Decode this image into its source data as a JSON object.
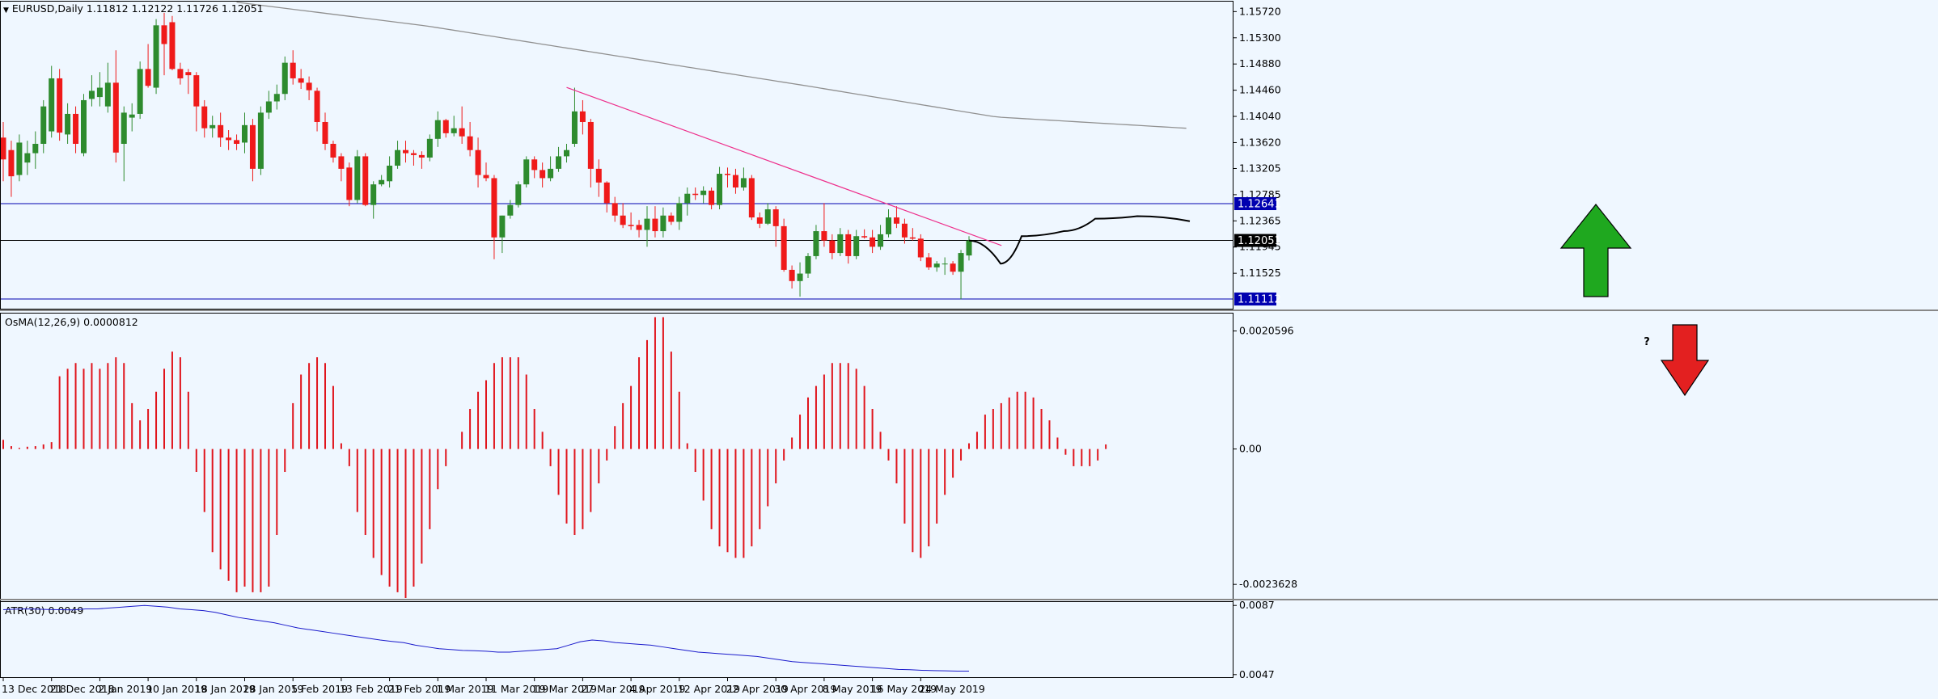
{
  "symbol_header": "EURUSD,Daily  1.11812 1.12122 1.11726 1.12051",
  "colors": {
    "background": "#eff7ff",
    "bull": "#2e8b2e",
    "bear": "#ef1a1a",
    "ma": "#909090",
    "trendline": "#ee2f8b",
    "level": "#0000b0",
    "current": "#000000",
    "atr": "#1a1acc",
    "osma": "#e0141c",
    "arrow_up": "#1fa81f",
    "arrow_down": "#e32020"
  },
  "chart_data": [
    {
      "type": "candlestick",
      "title": "EURUSD,Daily",
      "ohlc_current": {
        "open": 1.11812,
        "high": 1.12122,
        "low": 1.11726,
        "close": 1.12051
      },
      "ylim": [
        1.1097,
        1.1588
      ],
      "y_ticks": [
        "1.15720",
        "1.15300",
        "1.14880",
        "1.14460",
        "1.14040",
        "1.13620",
        "1.13205",
        "1.12785",
        "1.12365",
        "1.11945",
        "1.11525"
      ],
      "x_ticks": [
        "13 Dec 2018",
        "21 Dec 2018",
        "2 Jan 2019",
        "10 Jan 2019",
        "18 Jan 2019",
        "28 Jan 2019",
        "5 Feb 2019",
        "13 Feb 2019",
        "21 Feb 2019",
        "1 Mar 2019",
        "11 Mar 2019",
        "19 Mar 2019",
        "27 Mar 2019",
        "4 Apr 2019",
        "12 Apr 2019",
        "22 Apr 2019",
        "30 Apr 2019",
        "8 May 2019",
        "16 May 2019",
        "24 May 2019"
      ],
      "price_tags": [
        {
          "label": "1.12641",
          "value": 1.12641,
          "kind": "level"
        },
        {
          "label": "1.12051",
          "value": 1.12051,
          "kind": "current"
        },
        {
          "label": "1.11112",
          "value": 1.11112,
          "kind": "level"
        }
      ],
      "candles": [
        [
          1.137,
          1.1395,
          1.13,
          1.1335
        ],
        [
          1.135,
          1.1365,
          1.1275,
          1.1308
        ],
        [
          1.131,
          1.1375,
          1.13,
          1.1362
        ],
        [
          1.133,
          1.1365,
          1.131,
          1.1345
        ],
        [
          1.1345,
          1.138,
          1.132,
          1.136
        ],
        [
          1.136,
          1.143,
          1.1345,
          1.142
        ],
        [
          1.138,
          1.1485,
          1.137,
          1.1465
        ],
        [
          1.1465,
          1.148,
          1.1365,
          1.1378
        ],
        [
          1.1375,
          1.1425,
          1.136,
          1.1408
        ],
        [
          1.1408,
          1.142,
          1.1345,
          1.136
        ],
        [
          1.1345,
          1.144,
          1.134,
          1.143
        ],
        [
          1.1432,
          1.147,
          1.142,
          1.1445
        ],
        [
          1.1435,
          1.1475,
          1.142,
          1.145
        ],
        [
          1.142,
          1.149,
          1.141,
          1.1458
        ],
        [
          1.1458,
          1.151,
          1.133,
          1.1346
        ],
        [
          1.136,
          1.142,
          1.13,
          1.141
        ],
        [
          1.1402,
          1.1425,
          1.138,
          1.1407
        ],
        [
          1.1408,
          1.1492,
          1.14,
          1.148
        ],
        [
          1.148,
          1.152,
          1.145,
          1.1453
        ],
        [
          1.145,
          1.156,
          1.144,
          1.155
        ],
        [
          1.155,
          1.157,
          1.147,
          1.152
        ],
        [
          1.1555,
          1.1565,
          1.1478,
          1.148
        ],
        [
          1.148,
          1.149,
          1.1455,
          1.1465
        ],
        [
          1.1475,
          1.148,
          1.144,
          1.147
        ],
        [
          1.147,
          1.1475,
          1.138,
          1.142
        ],
        [
          1.142,
          1.143,
          1.137,
          1.1385
        ],
        [
          1.1385,
          1.1405,
          1.137,
          1.139
        ],
        [
          1.139,
          1.141,
          1.1355,
          1.137
        ],
        [
          1.137,
          1.1382,
          1.135,
          1.1366
        ],
        [
          1.1366,
          1.1375,
          1.135,
          1.136
        ],
        [
          1.1362,
          1.141,
          1.1345,
          1.139
        ],
        [
          1.139,
          1.14,
          1.13,
          1.132
        ],
        [
          1.132,
          1.142,
          1.131,
          1.141
        ],
        [
          1.141,
          1.1445,
          1.14,
          1.1428
        ],
        [
          1.1428,
          1.1455,
          1.1415,
          1.144
        ],
        [
          1.144,
          1.15,
          1.143,
          1.149
        ],
        [
          1.149,
          1.151,
          1.1455,
          1.1465
        ],
        [
          1.1465,
          1.148,
          1.1448,
          1.1458
        ],
        [
          1.1458,
          1.1468,
          1.143,
          1.1446
        ],
        [
          1.1445,
          1.145,
          1.138,
          1.1395
        ],
        [
          1.1395,
          1.141,
          1.135,
          1.136
        ],
        [
          1.136,
          1.1365,
          1.133,
          1.1338
        ],
        [
          1.134,
          1.1345,
          1.13,
          1.132
        ],
        [
          1.1322,
          1.133,
          1.126,
          1.127
        ],
        [
          1.127,
          1.135,
          1.1265,
          1.134
        ],
        [
          1.134,
          1.1345,
          1.126,
          1.1262
        ],
        [
          1.1262,
          1.13,
          1.124,
          1.1295
        ],
        [
          1.1295,
          1.131,
          1.1292,
          1.1302
        ],
        [
          1.13,
          1.134,
          1.129,
          1.1325
        ],
        [
          1.1325,
          1.1365,
          1.132,
          1.135
        ],
        [
          1.135,
          1.1365,
          1.133,
          1.1345
        ],
        [
          1.1345,
          1.135,
          1.1325,
          1.1342
        ],
        [
          1.1342,
          1.1348,
          1.132,
          1.1338
        ],
        [
          1.1338,
          1.1375,
          1.1332,
          1.1368
        ],
        [
          1.1368,
          1.1412,
          1.1355,
          1.1398
        ],
        [
          1.1398,
          1.14,
          1.137,
          1.1377
        ],
        [
          1.1377,
          1.1405,
          1.1372,
          1.1385
        ],
        [
          1.1385,
          1.142,
          1.136,
          1.1372
        ],
        [
          1.1372,
          1.1395,
          1.134,
          1.135
        ],
        [
          1.135,
          1.137,
          1.129,
          1.131
        ],
        [
          1.131,
          1.133,
          1.13,
          1.1305
        ],
        [
          1.1305,
          1.131,
          1.1175,
          1.121
        ],
        [
          1.121,
          1.1245,
          1.1185,
          1.1245
        ],
        [
          1.1245,
          1.127,
          1.124,
          1.1262
        ],
        [
          1.1262,
          1.13,
          1.1258,
          1.1295
        ],
        [
          1.1295,
          1.134,
          1.129,
          1.1335
        ],
        [
          1.1335,
          1.134,
          1.1305,
          1.1318
        ],
        [
          1.1318,
          1.133,
          1.129,
          1.1305
        ],
        [
          1.1305,
          1.134,
          1.13,
          1.132
        ],
        [
          1.132,
          1.1355,
          1.1315,
          1.134
        ],
        [
          1.134,
          1.136,
          1.133,
          1.135
        ],
        [
          1.136,
          1.145,
          1.1355,
          1.1412
        ],
        [
          1.1412,
          1.143,
          1.1375,
          1.1395
        ],
        [
          1.1395,
          1.14,
          1.129,
          1.132
        ],
        [
          1.132,
          1.1335,
          1.1275,
          1.1298
        ],
        [
          1.1298,
          1.13,
          1.125,
          1.1265
        ],
        [
          1.1265,
          1.1275,
          1.1235,
          1.1245
        ],
        [
          1.1245,
          1.1265,
          1.1225,
          1.123
        ],
        [
          1.123,
          1.125,
          1.1222,
          1.1228
        ],
        [
          1.123,
          1.1238,
          1.121,
          1.1222
        ],
        [
          1.1222,
          1.126,
          1.1195,
          1.124
        ],
        [
          1.124,
          1.126,
          1.121,
          1.122
        ],
        [
          1.122,
          1.1258,
          1.121,
          1.1245
        ],
        [
          1.1245,
          1.125,
          1.123,
          1.1235
        ],
        [
          1.1235,
          1.1275,
          1.1222,
          1.1265
        ],
        [
          1.1265,
          1.129,
          1.1245,
          1.128
        ],
        [
          1.128,
          1.129,
          1.127,
          1.1278
        ],
        [
          1.1278,
          1.1292,
          1.1265,
          1.1285
        ],
        [
          1.1285,
          1.129,
          1.1255,
          1.1262
        ],
        [
          1.1262,
          1.1323,
          1.1255,
          1.1312
        ],
        [
          1.1312,
          1.1322,
          1.129,
          1.131
        ],
        [
          1.131,
          1.132,
          1.128,
          1.129
        ],
        [
          1.129,
          1.1322,
          1.1285,
          1.1305
        ],
        [
          1.1305,
          1.131,
          1.1238,
          1.1242
        ],
        [
          1.1242,
          1.125,
          1.1225,
          1.1232
        ],
        [
          1.1232,
          1.1265,
          1.123,
          1.1255
        ],
        [
          1.1255,
          1.126,
          1.1195,
          1.1228
        ],
        [
          1.1228,
          1.124,
          1.1155,
          1.1158
        ],
        [
          1.1158,
          1.1165,
          1.1128,
          1.114
        ],
        [
          1.114,
          1.117,
          1.1115,
          1.1152
        ],
        [
          1.1152,
          1.1185,
          1.1145,
          1.118
        ],
        [
          1.118,
          1.123,
          1.1175,
          1.122
        ],
        [
          1.122,
          1.1265,
          1.1195,
          1.1205
        ],
        [
          1.1205,
          1.1215,
          1.1175,
          1.1185
        ],
        [
          1.1185,
          1.1225,
          1.118,
          1.1215
        ],
        [
          1.1215,
          1.1222,
          1.1168,
          1.118
        ],
        [
          1.118,
          1.1222,
          1.1175,
          1.1212
        ],
        [
          1.1212,
          1.1223,
          1.1208,
          1.121
        ],
        [
          1.121,
          1.1222,
          1.1185,
          1.1195
        ],
        [
          1.1195,
          1.123,
          1.119,
          1.1215
        ],
        [
          1.1215,
          1.1255,
          1.121,
          1.1242
        ],
        [
          1.1242,
          1.126,
          1.1225,
          1.1232
        ],
        [
          1.1232,
          1.124,
          1.12,
          1.121
        ],
        [
          1.121,
          1.1225,
          1.1205,
          1.1208
        ],
        [
          1.1208,
          1.1215,
          1.1172,
          1.1178
        ],
        [
          1.1178,
          1.1185,
          1.1158,
          1.1162
        ],
        [
          1.1162,
          1.1172,
          1.1155,
          1.1168
        ],
        [
          1.1168,
          1.1178,
          1.115,
          1.1168
        ],
        [
          1.1168,
          1.1172,
          1.115,
          1.1155
        ],
        [
          1.1155,
          1.119,
          1.1111,
          1.1185
        ],
        [
          1.1181,
          1.1212,
          1.1173,
          1.1205
        ]
      ],
      "ma": [
        1.1587,
        1.1549,
        1.1501,
        1.1453,
        1.1403,
        1.1385
      ],
      "trendline": [
        [
          70,
          1.14505
        ],
        [
          116,
          1.1205
        ]
      ],
      "projection": [
        [
          1.1205,
          0
        ],
        [
          1.1168,
          1.5
        ],
        [
          1.1212,
          2.5
        ],
        [
          1.122,
          4.5
        ],
        [
          1.124,
          6
        ],
        [
          1.1244,
          8
        ],
        [
          1.1236,
          10.5
        ]
      ]
    },
    {
      "type": "bar",
      "title": "OsMA(12,26,9) 0.0000812",
      "ylim": [
        -0.0026,
        0.00235
      ],
      "y_ticks": [
        "0.0020596",
        "0.00",
        "-0.0023628"
      ],
      "values": [
        0.00016,
        5e-05,
        2e-05,
        4e-05,
        5e-05,
        8e-05,
        0.00012,
        0.00127,
        0.0014,
        0.0015,
        0.0014,
        0.0015,
        0.0014,
        0.0015,
        0.0016,
        0.0015,
        0.0008,
        0.0005,
        0.0007,
        0.001,
        0.0014,
        0.0017,
        0.0016,
        0.001,
        -0.0004,
        -0.0011,
        -0.0018,
        -0.0021,
        -0.0023,
        -0.0025,
        -0.0024,
        -0.0025,
        -0.0025,
        -0.0024,
        -0.0015,
        -0.0004,
        0.0008,
        0.0013,
        0.0015,
        0.0016,
        0.0015,
        0.0011,
        0.0001,
        -0.0003,
        -0.0011,
        -0.0015,
        -0.0019,
        -0.0022,
        -0.0024,
        -0.0025,
        -0.0026,
        -0.0024,
        -0.002,
        -0.0014,
        -0.0007,
        -0.0003,
        0.0,
        0.0003,
        0.0007,
        0.001,
        0.0012,
        0.0015,
        0.0016,
        0.0016,
        0.0016,
        0.0013,
        0.0007,
        0.0003,
        -0.0003,
        -0.0008,
        -0.0013,
        -0.0015,
        -0.0014,
        -0.0011,
        -0.0006,
        -0.0002,
        0.0004,
        0.0008,
        0.0011,
        0.0016,
        0.0019,
        0.0023,
        0.0023,
        0.0017,
        0.001,
        0.0001,
        -0.0004,
        -0.0009,
        -0.0014,
        -0.0017,
        -0.0018,
        -0.0019,
        -0.0019,
        -0.0017,
        -0.0014,
        -0.001,
        -0.0006,
        -0.0002,
        0.0002,
        0.0006,
        0.0009,
        0.0011,
        0.0013,
        0.0015,
        0.0015,
        0.0015,
        0.0014,
        0.0011,
        0.0007,
        0.0003,
        -0.0002,
        -0.0006,
        -0.0013,
        -0.0018,
        -0.0019,
        -0.0017,
        -0.0013,
        -0.0008,
        -0.0005,
        -0.0002,
        0.0001,
        0.0003,
        0.0006,
        0.0007,
        0.0008,
        0.0009,
        0.001,
        0.001,
        0.0009,
        0.0007,
        0.0005,
        0.0002,
        -0.0001,
        -0.0003,
        -0.0003,
        -0.0003,
        -0.0002,
        8e-05
      ]
    },
    {
      "type": "line",
      "title": "ATR(30) 0.0049",
      "ylim": [
        0.00455,
        0.00885
      ],
      "y_ticks": [
        "0.0087",
        "0.0047"
      ],
      "values": [
        0.00845,
        0.00848,
        0.0085,
        0.00848,
        0.00846,
        0.00845,
        0.00844,
        0.0085,
        0.0085,
        0.00855,
        0.0086,
        0.00865,
        0.0087,
        0.00865,
        0.0086,
        0.0085,
        0.00845,
        0.0084,
        0.0083,
        0.00815,
        0.008,
        0.0079,
        0.0078,
        0.0077,
        0.00755,
        0.0074,
        0.0073,
        0.0072,
        0.0071,
        0.007,
        0.0069,
        0.0068,
        0.0067,
        0.00662,
        0.00655,
        0.0064,
        0.0063,
        0.0062,
        0.00615,
        0.0061,
        0.00608,
        0.00605,
        0.006,
        0.006,
        0.00605,
        0.0061,
        0.00615,
        0.0062,
        0.0064,
        0.0066,
        0.0067,
        0.00665,
        0.00655,
        0.0065,
        0.00645,
        0.0064,
        0.0063,
        0.0062,
        0.0061,
        0.006,
        0.00595,
        0.0059,
        0.00585,
        0.0058,
        0.00575,
        0.00565,
        0.00555,
        0.00545,
        0.0054,
        0.00535,
        0.0053,
        0.00525,
        0.0052,
        0.00515,
        0.0051,
        0.00505,
        0.005,
        0.00498,
        0.00495,
        0.00493,
        0.00492,
        0.0049,
        0.0049
      ]
    }
  ]
}
